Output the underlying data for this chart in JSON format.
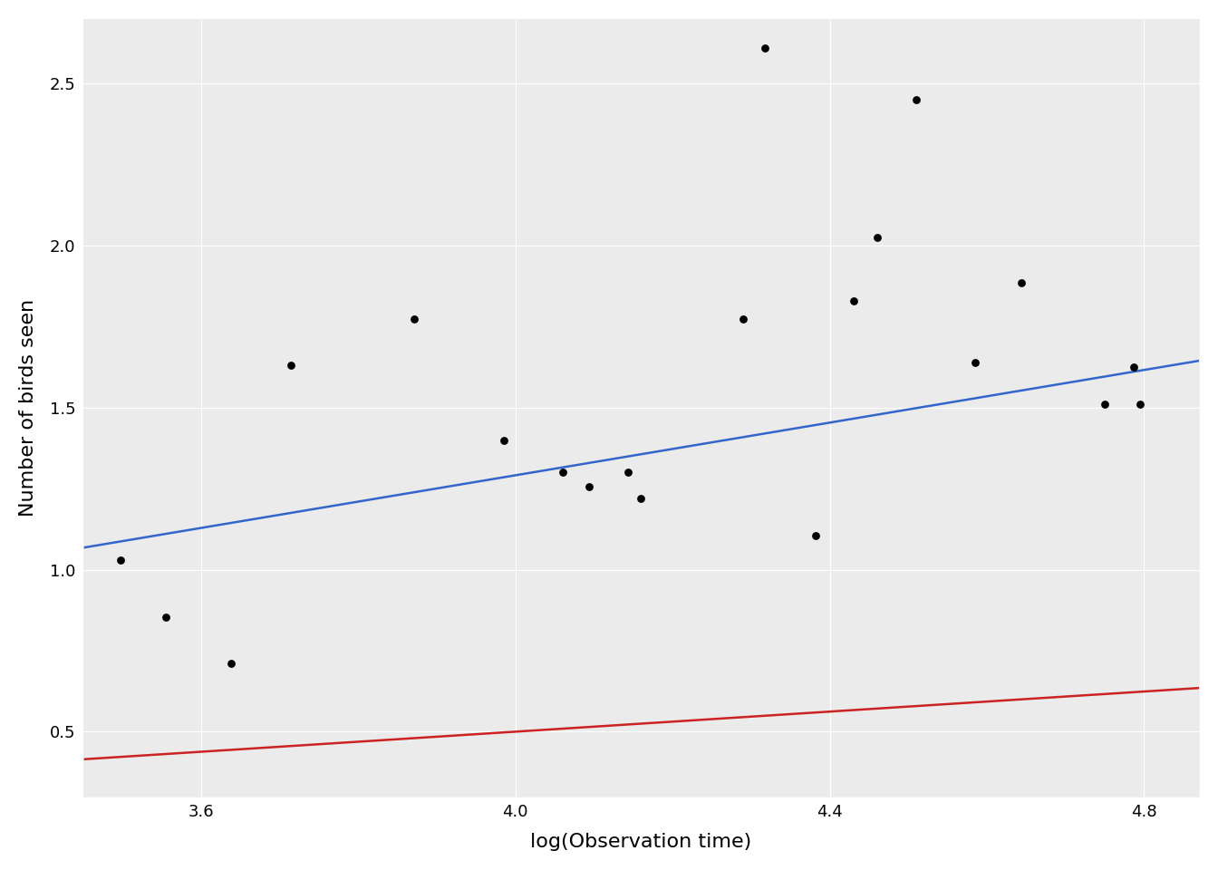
{
  "points_x": [
    3.497,
    3.555,
    3.638,
    3.714,
    3.871,
    3.985,
    4.06,
    4.094,
    4.143,
    4.159,
    4.29,
    4.317,
    4.382,
    4.43,
    4.46,
    4.51,
    4.585,
    4.644,
    4.75,
    4.787,
    4.795
  ],
  "points_y": [
    1.03,
    0.855,
    0.71,
    1.63,
    1.775,
    1.4,
    1.3,
    1.255,
    1.3,
    1.22,
    1.775,
    2.61,
    1.105,
    1.83,
    2.025,
    2.45,
    1.64,
    1.885,
    1.51,
    1.625,
    1.51
  ],
  "blue_line_x": [
    3.45,
    4.87
  ],
  "blue_line_y": [
    1.068,
    1.645
  ],
  "red_line_x": [
    3.45,
    4.87
  ],
  "red_line_y": [
    0.415,
    0.635
  ],
  "blue_color": "#3366CC",
  "red_color": "#CC2222",
  "point_color": "#000000",
  "background_color": "#ffffff",
  "panel_background": "#EBEBEB",
  "grid_color": "#ffffff",
  "xlabel": "log(Observation time)",
  "ylabel": "Number of birds seen",
  "xlim": [
    3.45,
    4.87
  ],
  "ylim": [
    0.3,
    2.7
  ],
  "x_ticks": [
    3.6,
    4.0,
    4.4,
    4.8
  ],
  "y_ticks": [
    0.5,
    1.0,
    1.5,
    2.0,
    2.5
  ],
  "axis_label_fontsize": 16,
  "tick_fontsize": 13,
  "line_width": 1.8,
  "point_size": 40
}
